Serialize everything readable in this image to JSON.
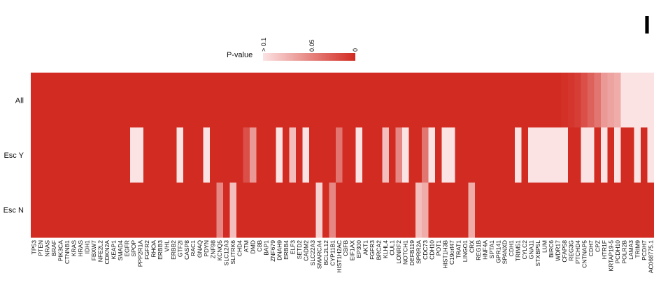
{
  "page": {
    "edge_letter": "I"
  },
  "chart_data": {
    "type": "heatmap",
    "title": "",
    "legend": {
      "title": "P-value",
      "ticks": [
        "> 0.1",
        "0.05",
        "0"
      ],
      "color_low_p": "#d22b22",
      "color_high_p": "#fbe3e3"
    },
    "rows": [
      "All",
      "Esc Y",
      "Esc N"
    ],
    "columns": [
      "TP53",
      "PTEN",
      "NRAS",
      "BRAF",
      "PIK3CA",
      "CTNNB1",
      "KRAS",
      "HRAS",
      "IDH1",
      "FBXW7",
      "NFE2L2",
      "CDKN2A",
      "KEAP1",
      "SMAD4",
      "EGFR",
      "SPOP",
      "PPP2R1A",
      "FGFR2",
      "RHOA",
      "ERBB3",
      "VHL",
      "ERBB2",
      "GTF2I",
      "CASP8",
      "RAC1",
      "GNAQ",
      "PDYN",
      "ZNF98",
      "KCNQ5",
      "SLC12A3",
      "SLITRK6",
      "CHD4",
      "ATM",
      "DMD",
      "C8B",
      "BAP1",
      "ZNF679",
      "DNAH9",
      "ERBB4",
      "ELF3",
      "SETD2",
      "CADM2",
      "SLC22A3",
      "SMARCA4",
      "BCL2L12",
      "CYP11B1",
      "HIST1H2AC",
      "CBFB",
      "EIF1AX",
      "EP300",
      "AKT1",
      "FGFR3",
      "BRCA2",
      "KLHL4",
      "CUL1",
      "LONRF2",
      "NOTCH1",
      "DEFB119",
      "SPRR2A",
      "CDC73",
      "CDH10",
      "POT1",
      "HIST1H3B",
      "C19orf47",
      "TRAT1",
      "LINGO1",
      "CRX",
      "REG1B",
      "HNF4A",
      "SPTA1",
      "GPR141",
      "SPANXD",
      "CDH1",
      "TRIM51",
      "CYLC2",
      "GNA11",
      "STXBP5L",
      "LUM",
      "BIRC6",
      "WDR17",
      "CFAP58",
      "REG3G",
      "PTCHD4",
      "CNTNAP5",
      "CDH7",
      "CPZ",
      "HTR1F",
      "KRTAP19-5",
      "PCDH10",
      "POLR2B",
      "LAMA3",
      "TRIM9",
      "PCDH7",
      "AC068775.1"
    ],
    "pvalues": [
      [
        0,
        0,
        0,
        0,
        0,
        0,
        0,
        0,
        0,
        0,
        0,
        0,
        0,
        0,
        0,
        0,
        0,
        0,
        0,
        0,
        0,
        0,
        0,
        0,
        0,
        0,
        0,
        0,
        0,
        0,
        0,
        0,
        0,
        0,
        0,
        0,
        0,
        0,
        0,
        0,
        0,
        0,
        0,
        0,
        0,
        0,
        0,
        0,
        0,
        0,
        0,
        0,
        0,
        0,
        0,
        0,
        0,
        0,
        0,
        0,
        0,
        0,
        0,
        0,
        0,
        0,
        0,
        0,
        0,
        0,
        0,
        0,
        0,
        0,
        0,
        0,
        0,
        0,
        0,
        0,
        0.003,
        0.006,
        0.01,
        0.02,
        0.03,
        0.04,
        0.06,
        0.065,
        0.07,
        0.1,
        0.1,
        0.1,
        0.1,
        0.1
      ],
      [
        0,
        0,
        0,
        0,
        0,
        0,
        0,
        0,
        0,
        0,
        0,
        0,
        0,
        0,
        0,
        0.1,
        0.1,
        0,
        0,
        0,
        0,
        0,
        0.1,
        0,
        0,
        0,
        0.1,
        0,
        0,
        0,
        0,
        0,
        0.02,
        0.06,
        0,
        0,
        0,
        0.1,
        0,
        0.08,
        0,
        0.1,
        0,
        0,
        0,
        0,
        0.04,
        0,
        0,
        0.1,
        0,
        0,
        0,
        0.08,
        0,
        0.05,
        0.1,
        0,
        0,
        0.04,
        0.1,
        0,
        0.1,
        0.1,
        0,
        0,
        0,
        0,
        0,
        0,
        0,
        0,
        0,
        0.1,
        0,
        0.1,
        0.1,
        0.1,
        0.1,
        0.1,
        0.1,
        0,
        0,
        0.1,
        0.1,
        0,
        0.1,
        0,
        0.1,
        0,
        0,
        0.1,
        0,
        0.1
      ],
      [
        0,
        0,
        0,
        0,
        0,
        0,
        0,
        0,
        0,
        0,
        0,
        0,
        0,
        0,
        0,
        0,
        0,
        0,
        0,
        0,
        0,
        0,
        0,
        0,
        0,
        0,
        0,
        0,
        0.05,
        0,
        0.08,
        0,
        0,
        0,
        0,
        0,
        0,
        0,
        0,
        0,
        0,
        0,
        0,
        0.09,
        0,
        0.05,
        0,
        0,
        0,
        0,
        0,
        0,
        0,
        0,
        0,
        0,
        0,
        0,
        0.08,
        0.07,
        0,
        0,
        0,
        0,
        0,
        0,
        0.07,
        0,
        0,
        0,
        0,
        0,
        0,
        0,
        0,
        0,
        0,
        0,
        0,
        0,
        0,
        0,
        0,
        0,
        0,
        0,
        0,
        0,
        0,
        0,
        0,
        0,
        0,
        0
      ]
    ]
  }
}
